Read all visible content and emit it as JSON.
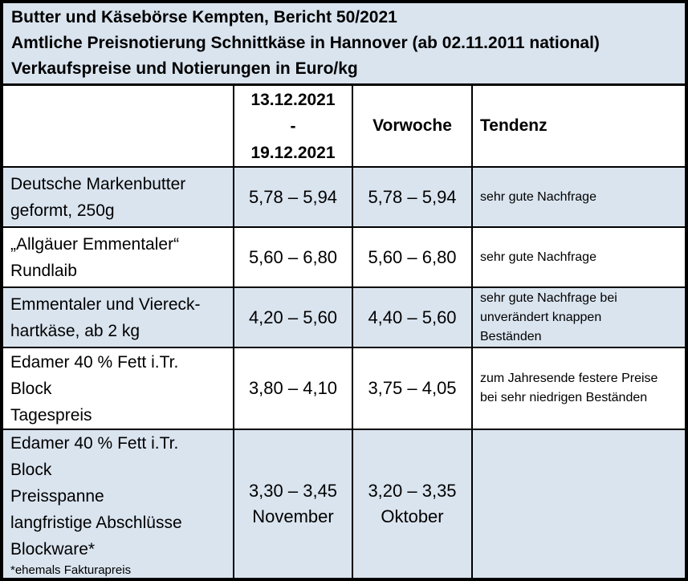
{
  "report": {
    "title_lines": [
      "Butter und Käsebörse Kempten, Bericht 50/2021",
      "Amtliche Preisnotierung Schnittkäse in Hannover (ab 02.11.2011 national)",
      "Verkaufspreise und Notierungen in Euro/kg"
    ]
  },
  "table": {
    "header": {
      "product": "",
      "period": "13.12.2021\n-\n19.12.2021",
      "previous": "Vorwoche",
      "trend": "Tendenz"
    },
    "rows": [
      {
        "product": "Deutsche Markenbutter\ngeformt, 250g",
        "price": "5,78 – 5,94",
        "previous": "5,78 – 5,94",
        "trend": "sehr gute Nachfrage"
      },
      {
        "product": "„Allgäuer Emmentaler“\nRundlaib",
        "price": "5,60 – 6,80",
        "previous": "5,60 – 6,80",
        "trend": "sehr gute Nachfrage"
      },
      {
        "product": "Emmentaler und Viereck-\nhartkäse, ab 2 kg",
        "price": "4,20 – 5,60",
        "previous": "4,40 – 5,60",
        "trend": "sehr gute Nachfrage bei\nunverändert knappen\nBeständen"
      },
      {
        "product": "Edamer 40 % Fett i.Tr.\nBlock\nTagespreis",
        "price": "3,80 – 4,10",
        "previous": "3,75 – 4,05",
        "trend": "zum Jahresende festere Preise\nbei sehr niedrigen Beständen"
      },
      {
        "product": "Edamer 40 % Fett i.Tr.\nBlock\nPreisspanne\nlangfristige Abschlüsse\nBlockware*",
        "footnote": "*ehemals Fakturapreis",
        "price": "3,30 – 3,45\nNovember",
        "previous": "3,20 – 3,35\nOktober",
        "trend": ""
      }
    ]
  },
  "colors": {
    "row_shade": "#dae4ef",
    "border": "#000000",
    "text": "#000000"
  }
}
